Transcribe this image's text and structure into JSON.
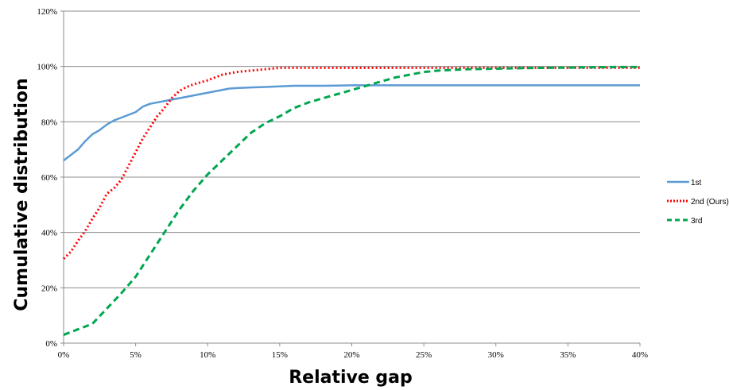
{
  "chart_data": {
    "type": "line",
    "title": "",
    "xlabel": "Relative gap",
    "ylabel": "Cumulative distribution",
    "xlim": [
      0,
      40
    ],
    "ylim": [
      0,
      120
    ],
    "x_ticks": [
      0,
      5,
      10,
      15,
      20,
      25,
      30,
      35,
      40
    ],
    "x_tick_labels": [
      "0%",
      "5%",
      "10%",
      "15%",
      "20%",
      "25%",
      "30%",
      "35%",
      "40%"
    ],
    "y_ticks": [
      0,
      20,
      40,
      60,
      80,
      100,
      120
    ],
    "y_tick_labels": [
      "0%",
      "20%",
      "40%",
      "60%",
      "80%",
      "100%",
      "120%"
    ],
    "grid": "horizontal",
    "legend_position": "right",
    "series": [
      {
        "name": "1st",
        "color": "#5b9bd5",
        "style": "solid",
        "x": [
          0,
          0.5,
          1,
          1.5,
          2,
          2.5,
          3,
          3.5,
          4,
          4.5,
          5,
          5.5,
          6,
          6.5,
          7,
          7.5,
          8,
          8.5,
          9,
          9.5,
          10,
          10.5,
          11,
          11.5,
          12,
          13,
          14,
          15,
          16,
          17,
          18,
          19,
          20,
          22,
          25,
          30,
          35,
          40
        ],
        "y": [
          66,
          68,
          70,
          73,
          75.5,
          77,
          79,
          80.5,
          81.5,
          82.5,
          83.5,
          85.5,
          86.5,
          87,
          87.5,
          88,
          88.5,
          89,
          89.5,
          90,
          90.5,
          91,
          91.5,
          92,
          92.2,
          92.4,
          92.6,
          92.8,
          93,
          93,
          93,
          93.1,
          93.2,
          93.2,
          93.2,
          93.2,
          93.2,
          93.2
        ]
      },
      {
        "name": "2nd (Ours)",
        "color": "#ff0000",
        "style": "dotted",
        "x": [
          0,
          0.5,
          1,
          1.5,
          2,
          2.5,
          3,
          3.5,
          4,
          4.5,
          5,
          5.5,
          6,
          6.5,
          7,
          7.5,
          8,
          8.5,
          9,
          10,
          11,
          12,
          13,
          14,
          15,
          17,
          20,
          25,
          30,
          35,
          40
        ],
        "y": [
          30.5,
          33,
          37,
          40.5,
          45,
          49,
          54,
          56,
          59,
          64,
          69,
          74,
          78,
          82,
          85,
          88.5,
          91,
          92.5,
          93.5,
          95,
          97,
          98,
          98.5,
          99,
          99.5,
          99.5,
          99.5,
          99.5,
          99.5,
          99.5,
          99.5
        ]
      },
      {
        "name": "3rd",
        "color": "#00a650",
        "style": "dashed",
        "x": [
          0,
          1,
          2,
          3,
          4,
          5,
          6,
          7,
          8,
          9,
          10,
          11,
          12,
          13,
          14,
          15,
          16,
          17,
          18,
          19,
          20,
          21,
          22,
          23,
          24,
          25,
          26,
          28,
          30,
          32,
          35,
          38,
          40
        ],
        "y": [
          3,
          5,
          7,
          12.5,
          18,
          24,
          32,
          40,
          48,
          55,
          61,
          66,
          71,
          76,
          79.5,
          82,
          85,
          87,
          88.5,
          90,
          91.5,
          93,
          94.5,
          96,
          97,
          98,
          98.5,
          99,
          99.2,
          99.4,
          99.6,
          99.8,
          99.8
        ]
      }
    ]
  }
}
